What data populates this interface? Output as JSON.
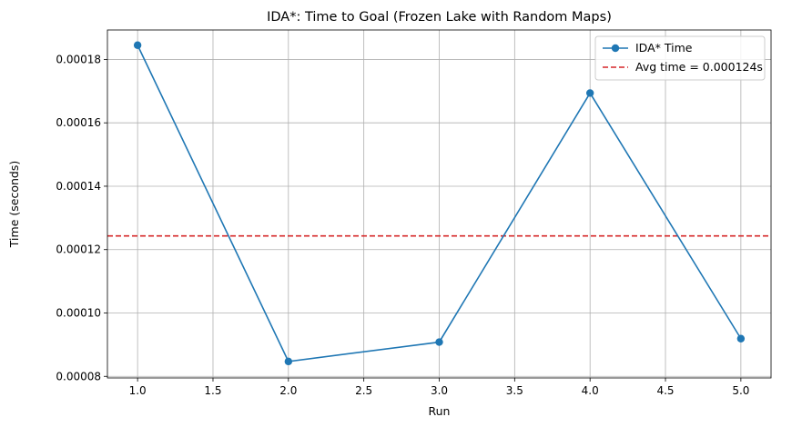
{
  "chart_data": {
    "type": "line",
    "title": "IDA*: Time to Goal (Frozen Lake with Random Maps)",
    "xlabel": "Run",
    "ylabel": "Time (seconds)",
    "x": [
      1.0,
      2.0,
      3.0,
      4.0,
      5.0
    ],
    "series": [
      {
        "name": "IDA* Time",
        "values": [
          0.0001845,
          8.47e-05,
          9.08e-05,
          0.0001694,
          9.19e-05
        ],
        "color": "#1f77b4",
        "marker": "circle"
      }
    ],
    "reference_line": {
      "name": "Avg time = 0.000124s",
      "value": 0.0001243,
      "color": "#d62728",
      "style": "dashed"
    },
    "xlim": [
      0.8,
      5.2
    ],
    "ylim": [
      7.95e-05,
      0.0001893
    ],
    "x_ticks": [
      1.0,
      1.5,
      2.0,
      2.5,
      3.0,
      3.5,
      4.0,
      4.5,
      5.0
    ],
    "x_tick_labels": [
      "1.0",
      "1.5",
      "2.0",
      "2.5",
      "3.0",
      "3.5",
      "4.0",
      "4.5",
      "5.0"
    ],
    "y_ticks": [
      8e-05,
      0.0001,
      0.00012,
      0.00014,
      0.00016,
      0.00018
    ],
    "y_tick_labels": [
      "0.00008",
      "0.00010",
      "0.00012",
      "0.00014",
      "0.00016",
      "0.00018"
    ],
    "grid": true,
    "legend_position": "top-right"
  }
}
